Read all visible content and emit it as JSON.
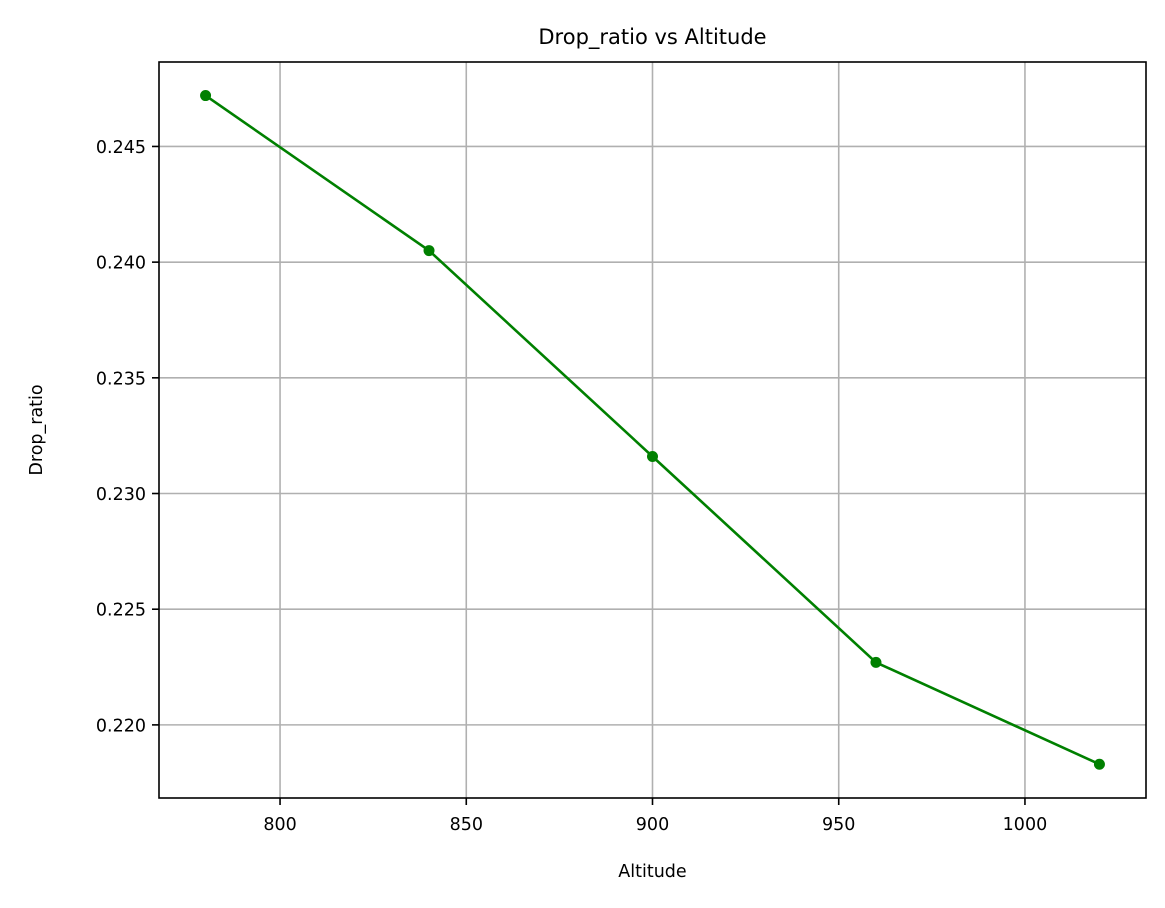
{
  "chart_data": {
    "type": "line",
    "title": "Drop_ratio vs Altitude",
    "xlabel": "Altitude",
    "ylabel": "Drop_ratio",
    "xlim": [
      767.5,
      1032.5
    ],
    "ylim": [
      0.21684,
      0.24865
    ],
    "xticks": [
      800,
      850,
      900,
      950,
      1000
    ],
    "xtick_labels": [
      "800",
      "850",
      "900",
      "950",
      "1000"
    ],
    "yticks": [
      0.22,
      0.225,
      0.23,
      0.235,
      0.24,
      0.245
    ],
    "ytick_labels": [
      "0.220",
      "0.225",
      "0.230",
      "0.235",
      "0.240",
      "0.245"
    ],
    "grid": true,
    "series": [
      {
        "name": "Drop_ratio",
        "color": "#008000",
        "marker": "circle",
        "x": [
          780,
          840,
          900,
          960,
          1020
        ],
        "y": [
          0.2472,
          0.2405,
          0.2316,
          0.2227,
          0.2183
        ]
      }
    ]
  }
}
